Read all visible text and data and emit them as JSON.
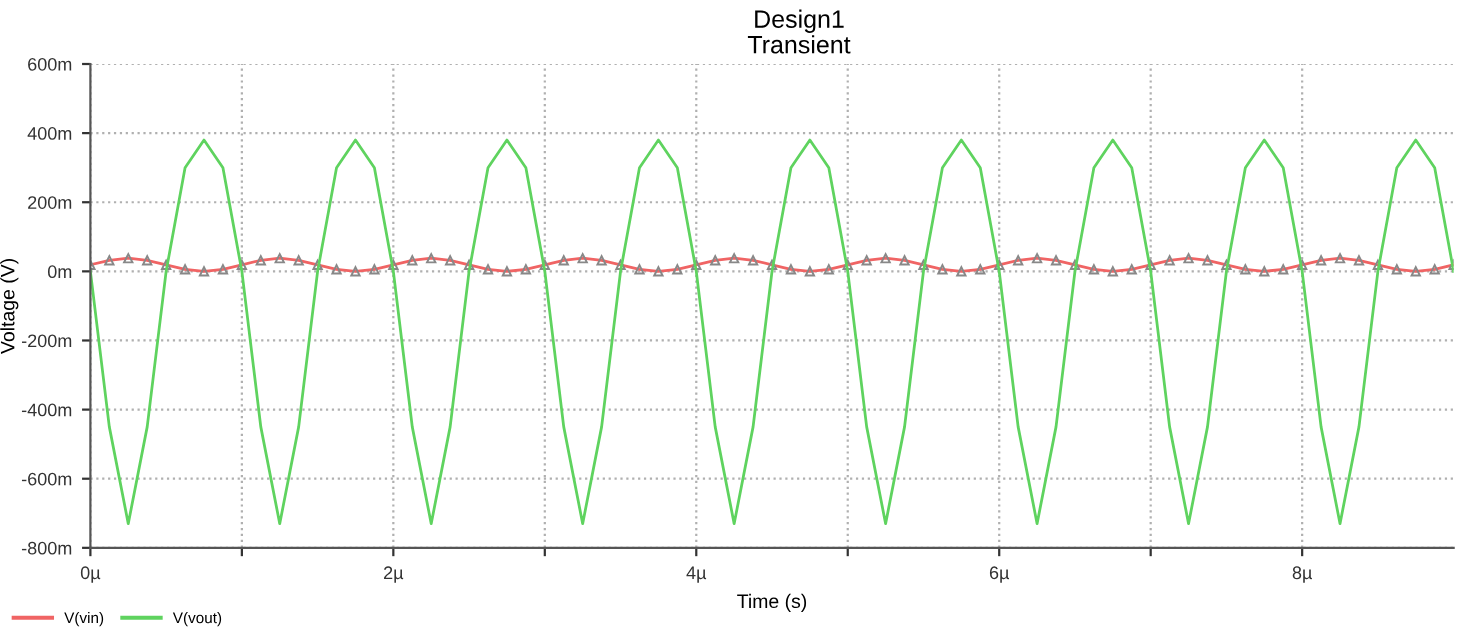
{
  "chart_data": {
    "type": "line",
    "title": "Design1",
    "subtitle": "Transient",
    "xlabel": "Time (s)",
    "ylabel": "Voltage (V)",
    "x": [
      0,
      0.125,
      0.25,
      0.375,
      0.5,
      0.625,
      0.75,
      0.875,
      1,
      1.125,
      1.25,
      1.375,
      1.5,
      1.625,
      1.75,
      1.875,
      2,
      2.125,
      2.25,
      2.375,
      2.5,
      2.625,
      2.75,
      2.875,
      3,
      3.125,
      3.25,
      3.375,
      3.5,
      3.625,
      3.75,
      3.875,
      4,
      4.125,
      4.25,
      4.375,
      4.5,
      4.625,
      4.75,
      4.875,
      5,
      5.125,
      5.25,
      5.375,
      5.5,
      5.625,
      5.75,
      5.875,
      6,
      6.125,
      6.25,
      6.375,
      6.5,
      6.625,
      6.75,
      6.875,
      7,
      7.125,
      7.25,
      7.375,
      7.5,
      7.625,
      7.75,
      7.875,
      8,
      8.125,
      8.25,
      8.375,
      8.5,
      8.625,
      8.75,
      8.875,
      9
    ],
    "series": [
      {
        "name": "V(vin)",
        "color": "#f06464",
        "marker": "triangle",
        "values": [
          19,
          32,
          38,
          32,
          19,
          6,
          0,
          6,
          19,
          32,
          38,
          32,
          19,
          6,
          0,
          6,
          19,
          32,
          38,
          32,
          19,
          6,
          0,
          6,
          19,
          32,
          38,
          32,
          19,
          6,
          0,
          6,
          19,
          32,
          38,
          32,
          19,
          6,
          0,
          6,
          19,
          32,
          38,
          32,
          19,
          6,
          0,
          6,
          19,
          32,
          38,
          32,
          19,
          6,
          0,
          6,
          19,
          32,
          38,
          32,
          19,
          6,
          0,
          6,
          19,
          32,
          38,
          32,
          19,
          6,
          0,
          6,
          19
        ]
      },
      {
        "name": "V(vout)",
        "color": "#5fd35f",
        "marker": "none",
        "values": [
          0,
          -450,
          -730,
          -450,
          0,
          300,
          380,
          300,
          0,
          -450,
          -730,
          -450,
          0,
          300,
          380,
          300,
          0,
          -450,
          -730,
          -450,
          0,
          300,
          380,
          300,
          0,
          -450,
          -730,
          -450,
          0,
          300,
          380,
          300,
          0,
          -450,
          -730,
          -450,
          0,
          300,
          380,
          300,
          0,
          -450,
          -730,
          -450,
          0,
          300,
          380,
          300,
          0,
          -450,
          -730,
          -450,
          0,
          300,
          380,
          300,
          0,
          -450,
          -730,
          -450,
          0,
          300,
          380,
          300,
          0,
          -450,
          -730,
          -450,
          0,
          300,
          380,
          300,
          0
        ]
      }
    ],
    "xlim": [
      0,
      9
    ],
    "xticks": [
      {
        "value": 0,
        "label": "0µ"
      },
      {
        "value": 1,
        "label": null
      },
      {
        "value": 2,
        "label": "2µ"
      },
      {
        "value": 3,
        "label": null
      },
      {
        "value": 4,
        "label": "4µ"
      },
      {
        "value": 5,
        "label": null
      },
      {
        "value": 6,
        "label": "6µ"
      },
      {
        "value": 7,
        "label": null
      },
      {
        "value": 8,
        "label": "8µ"
      }
    ],
    "ylim": [
      -800,
      600
    ],
    "yticks": [
      {
        "value": -800,
        "label": "-800m"
      },
      {
        "value": -600,
        "label": "-600m"
      },
      {
        "value": -400,
        "label": "-400m"
      },
      {
        "value": -200,
        "label": "-200m"
      },
      {
        "value": 0,
        "label": "0m"
      },
      {
        "value": 200,
        "label": "200m"
      },
      {
        "value": 400,
        "label": "400m"
      },
      {
        "value": 600,
        "label": "600m"
      }
    ],
    "grid": true,
    "legend": "bottom left",
    "line_style": "solid"
  }
}
